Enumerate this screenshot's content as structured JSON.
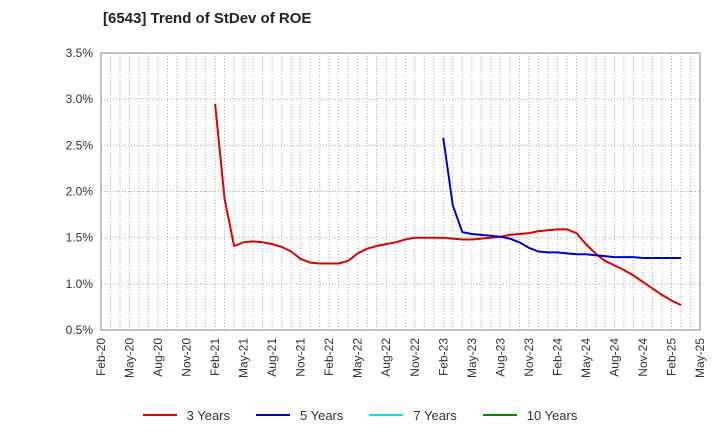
{
  "chart_data": {
    "type": "line",
    "title": "[6543]  Trend of StDev of ROE",
    "xlabel": "",
    "ylabel": "",
    "x_ticks": [
      "Feb-20",
      "May-20",
      "Aug-20",
      "Nov-20",
      "Feb-21",
      "May-21",
      "Aug-21",
      "Nov-21",
      "Feb-22",
      "May-22",
      "Aug-22",
      "Nov-22",
      "Feb-23",
      "May-23",
      "Aug-23",
      "Nov-23",
      "Feb-24",
      "May-24",
      "Aug-24",
      "Nov-24",
      "Feb-25",
      "May-25"
    ],
    "y_ticks": [
      "0.5%",
      "1.0%",
      "1.5%",
      "2.0%",
      "2.5%",
      "3.0%",
      "3.5%"
    ],
    "ylim": [
      0.5,
      3.5
    ],
    "y_unit": "%",
    "grid": "dotted",
    "legend_position": "bottom",
    "series": [
      {
        "name": "3 Years",
        "color": "#dd0000",
        "points": [
          [
            "Feb-21",
            2.95
          ],
          [
            "Mar-21",
            1.92
          ],
          [
            "Apr-21",
            1.41
          ],
          [
            "May-21",
            1.45
          ],
          [
            "Jun-21",
            1.46
          ],
          [
            "Jul-21",
            1.45
          ],
          [
            "Aug-21",
            1.43
          ],
          [
            "Sep-21",
            1.4
          ],
          [
            "Oct-21",
            1.35
          ],
          [
            "Nov-21",
            1.27
          ],
          [
            "Dec-21",
            1.23
          ],
          [
            "Jan-22",
            1.22
          ],
          [
            "Feb-22",
            1.22
          ],
          [
            "Mar-22",
            1.22
          ],
          [
            "Apr-22",
            1.25
          ],
          [
            "May-22",
            1.33
          ],
          [
            "Jun-22",
            1.38
          ],
          [
            "Jul-22",
            1.41
          ],
          [
            "Aug-22",
            1.43
          ],
          [
            "Sep-22",
            1.45
          ],
          [
            "Oct-22",
            1.48
          ],
          [
            "Nov-22",
            1.5
          ],
          [
            "Dec-22",
            1.5
          ],
          [
            "Jan-23",
            1.5
          ],
          [
            "Feb-23",
            1.5
          ],
          [
            "Mar-23",
            1.49
          ],
          [
            "Apr-23",
            1.48
          ],
          [
            "May-23",
            1.48
          ],
          [
            "Jun-23",
            1.49
          ],
          [
            "Jul-23",
            1.5
          ],
          [
            "Aug-23",
            1.51
          ],
          [
            "Sep-23",
            1.53
          ],
          [
            "Oct-23",
            1.54
          ],
          [
            "Nov-23",
            1.55
          ],
          [
            "Dec-23",
            1.57
          ],
          [
            "Jan-24",
            1.58
          ],
          [
            "Feb-24",
            1.59
          ],
          [
            "Mar-24",
            1.59
          ],
          [
            "Apr-24",
            1.55
          ],
          [
            "May-24",
            1.43
          ],
          [
            "Jun-24",
            1.33
          ],
          [
            "Jul-24",
            1.25
          ],
          [
            "Aug-24",
            1.2
          ],
          [
            "Sep-24",
            1.15
          ],
          [
            "Oct-24",
            1.09
          ],
          [
            "Nov-24",
            1.02
          ],
          [
            "Dec-24",
            0.95
          ],
          [
            "Jan-25",
            0.88
          ],
          [
            "Feb-25",
            0.82
          ],
          [
            "Mar-25",
            0.77
          ]
        ]
      },
      {
        "name": "5 Years",
        "color": "#0000cc",
        "points": [
          [
            "Feb-23",
            2.58
          ],
          [
            "Mar-23",
            1.85
          ],
          [
            "Apr-23",
            1.56
          ],
          [
            "May-23",
            1.54
          ],
          [
            "Jun-23",
            1.53
          ],
          [
            "Jul-23",
            1.52
          ],
          [
            "Aug-23",
            1.51
          ],
          [
            "Sep-23",
            1.49
          ],
          [
            "Oct-23",
            1.45
          ],
          [
            "Nov-23",
            1.39
          ],
          [
            "Dec-23",
            1.35
          ],
          [
            "Jan-24",
            1.34
          ],
          [
            "Feb-24",
            1.34
          ],
          [
            "Mar-24",
            1.33
          ],
          [
            "Apr-24",
            1.32
          ],
          [
            "May-24",
            1.32
          ],
          [
            "Jun-24",
            1.31
          ],
          [
            "Jul-24",
            1.3
          ],
          [
            "Aug-24",
            1.29
          ],
          [
            "Sep-24",
            1.29
          ],
          [
            "Oct-24",
            1.29
          ],
          [
            "Nov-24",
            1.28
          ],
          [
            "Dec-24",
            1.28
          ],
          [
            "Jan-25",
            1.28
          ],
          [
            "Feb-25",
            1.28
          ],
          [
            "Mar-25",
            1.28
          ]
        ]
      },
      {
        "name": "7 Years",
        "color": "#00e5ee",
        "points": []
      },
      {
        "name": "10 Years",
        "color": "#008800",
        "points": []
      }
    ]
  }
}
